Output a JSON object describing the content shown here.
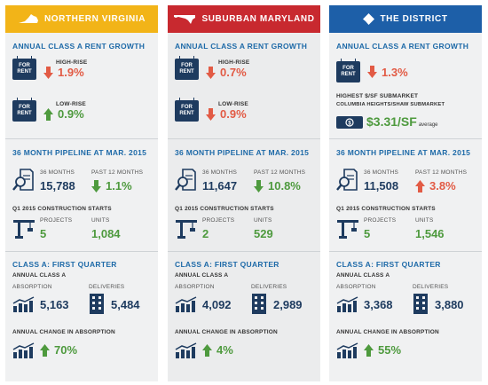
{
  "columns": [
    {
      "region": "NORTHERN VIRGINIA",
      "rent_growth_title": "ANNUAL CLASS A RENT GROWTH",
      "high_rise_label": "HIGH-RISE",
      "high_rise_value": "1.9%",
      "low_rise_label": "LOW-RISE",
      "low_rise_value": "0.9%",
      "pipeline_title": "36 MONTH PIPELINE AT MAR. 2015",
      "months36_label": "36 MONTHS",
      "months36_value": "15,788",
      "past12_label": "PAST 12 MONTHS",
      "past12_value": "1.1%",
      "starts_label": "Q1 2015 CONSTRUCTION STARTS",
      "projects_label": "PROJECTS",
      "projects_value": "5",
      "units_label": "UNITS",
      "units_value": "1,084",
      "q1_title": "CLASS A: FIRST QUARTER",
      "annual_class_label": "ANNUAL CLASS A",
      "absorption_label": "ABSORPTION",
      "absorption_value": "5,163",
      "deliveries_label": "DELIVERIES",
      "deliveries_value": "5,484",
      "change_label": "ANNUAL CHANGE IN ABSORPTION",
      "change_value": "70%"
    },
    {
      "region": "SUBURBAN MARYLAND",
      "rent_growth_title": "ANNUAL CLASS A RENT GROWTH",
      "high_rise_label": "HIGH-RISE",
      "high_rise_value": "0.7%",
      "low_rise_label": "LOW-RISE",
      "low_rise_value": "0.9%",
      "pipeline_title": "36 MONTH PIPELINE AT MAR. 2015",
      "months36_label": "36 MONTHS",
      "months36_value": "11,647",
      "past12_label": "PAST 12 MONTHS",
      "past12_value": "10.8%",
      "starts_label": "Q1 2015 CONSTRUCTION STARTS",
      "projects_label": "PROJECTS",
      "projects_value": "2",
      "units_label": "UNITS",
      "units_value": "529",
      "q1_title": "CLASS A: FIRST QUARTER",
      "annual_class_label": "ANNUAL CLASS A",
      "absorption_label": "ABSORPTION",
      "absorption_value": "4,092",
      "deliveries_label": "DELIVERIES",
      "deliveries_value": "2,989",
      "change_label": "ANNUAL CHANGE IN ABSORPTION",
      "change_value": "4%"
    },
    {
      "region": "THE DISTRICT",
      "rent_growth_title": "ANNUAL CLASS A RENT GROWTH",
      "rent_value": "1.3%",
      "highest_label": "HIGHEST $/SF SUBMARKET",
      "submarket_name": "COLUMBIA HEIGHTS/SHAW SUBMARKET",
      "price_value": "$3.31/SF",
      "price_suffix": "average",
      "pipeline_title": "36 MONTH PIPELINE AT MAR. 2015",
      "months36_label": "36 MONTHS",
      "months36_value": "11,508",
      "past12_label": "PAST 12 MONTHS",
      "past12_value": "3.8%",
      "starts_label": "Q1 2015 CONSTRUCTION STARTS",
      "projects_label": "PROJECTS",
      "projects_value": "5",
      "units_label": "UNITS",
      "units_value": "1,546",
      "q1_title": "CLASS A: FIRST QUARTER",
      "annual_class_label": "ANNUAL CLASS A",
      "absorption_label": "ABSORPTION",
      "absorption_value": "3,368",
      "deliveries_label": "DELIVERIES",
      "deliveries_value": "3,880",
      "change_label": "ANNUAL CHANGE IN ABSORPTION",
      "change_value": "55%"
    }
  ],
  "badge": {
    "line1": "FOR",
    "line2": "RENT"
  },
  "colors": {
    "virginia": "#f2b418",
    "maryland": "#c8292f",
    "district": "#1d5fa8",
    "up": "#4e9a3e",
    "down": "#e25b45",
    "navy": "#1e3b5f"
  },
  "icons": [
    "virginia-map-icon",
    "maryland-map-icon",
    "dc-map-icon",
    "for-rent-sign-icon",
    "down-arrow-icon",
    "up-arrow-icon",
    "magnifier-document-icon",
    "crane-icon",
    "bar-chart-icon",
    "building-icon",
    "dollar-bill-icon"
  ]
}
